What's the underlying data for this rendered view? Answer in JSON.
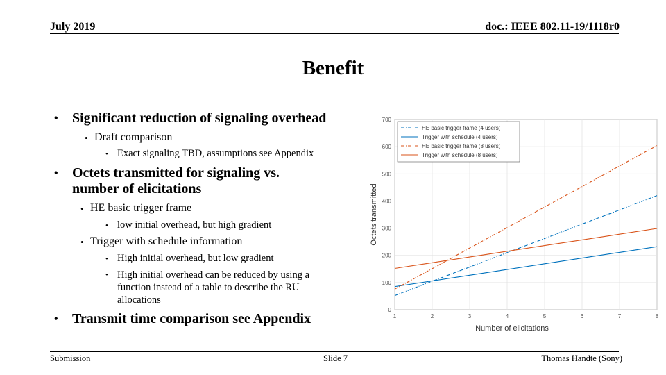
{
  "header": {
    "date": "July 2019",
    "doc": "doc.: IEEE 802.11-19/1118r0"
  },
  "title": "Benefit",
  "bullets": {
    "b1": "Significant reduction of signaling overhead",
    "b1_1": "Draft comparison",
    "b1_1_1": "Exact signaling TBD, assumptions see Appendix",
    "b2_line1": "Octets transmitted for signaling vs.",
    "b2_line2": "number of elicitations",
    "b2_1": "HE basic trigger frame",
    "b2_1_1": "low initial overhead, but high gradient",
    "b2_2": "Trigger with schedule information",
    "b2_2_1": "High initial overhead, but low gradient",
    "b2_2_2_line1": "High initial overhead can be reduced by using a",
    "b2_2_2_line2": "function instead of a table to describe the RU",
    "b2_2_2_line3": "allocations",
    "b3": "Transmit time comparison see Appendix"
  },
  "footer": {
    "left": "Submission",
    "center": "Slide 7",
    "right": "Thomas Handte (Sony)"
  },
  "chart_data": {
    "type": "line",
    "title": "",
    "xlabel": "Number of elicitations",
    "ylabel": "Octets transmitted",
    "x": [
      1,
      2,
      3,
      4,
      5,
      6,
      7,
      8
    ],
    "xlim": [
      1,
      8
    ],
    "ylim": [
      0,
      700
    ],
    "xticks": [
      "1",
      "2",
      "3",
      "4",
      "5",
      "6",
      "7",
      "8"
    ],
    "yticks": [
      "0",
      "100",
      "200",
      "300",
      "400",
      "500",
      "600",
      "700"
    ],
    "grid": true,
    "legend_position": "top-left",
    "series": [
      {
        "name": "HE basic trigger frame (4 users)",
        "color": "#0072bd",
        "dash": "dashdot",
        "values": [
          52,
          105,
          157,
          210,
          262,
          315,
          367,
          420
        ]
      },
      {
        "name": "Trigger with schedule (4 users)",
        "color": "#0072bd",
        "dash": "solid",
        "values": [
          85,
          106,
          127,
          148,
          169,
          190,
          211,
          232
        ]
      },
      {
        "name": "HE basic trigger frame (8 users)",
        "color": "#d95319",
        "dash": "dashdot",
        "values": [
          76,
          151,
          227,
          302,
          378,
          453,
          529,
          604
        ]
      },
      {
        "name": "Trigger with schedule (8 users)",
        "color": "#d95319",
        "dash": "solid",
        "values": [
          152,
          173,
          194,
          215,
          236,
          257,
          278,
          299
        ]
      }
    ]
  }
}
